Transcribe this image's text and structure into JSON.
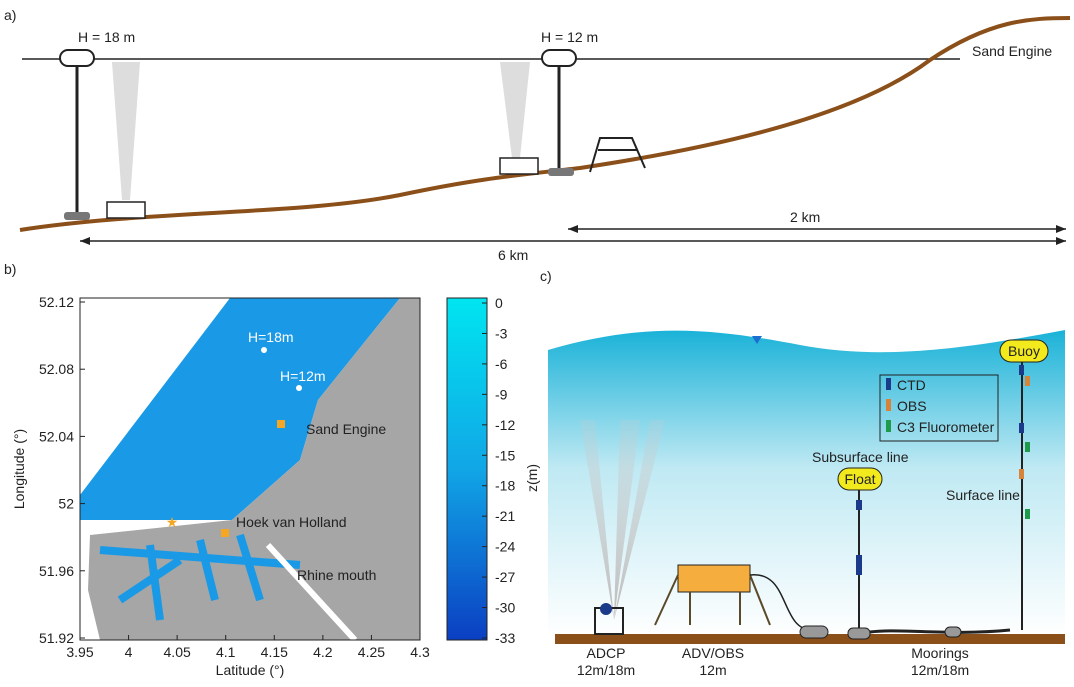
{
  "panel_a": {
    "label": "a)",
    "depth_labels": [
      "H = 18 m",
      "H = 12 m"
    ],
    "site": "Sand Engine",
    "distances": [
      "2 km",
      "6 km"
    ]
  },
  "panel_b": {
    "label": "b)",
    "xlabel": "Latitude (°)",
    "ylabel": "Longitude (°)",
    "xticks": [
      3.95,
      4,
      4.05,
      4.1,
      4.15,
      4.2,
      4.25,
      4.3
    ],
    "yticks": [
      52.12,
      52.08,
      52.04,
      52,
      51.96,
      51.92
    ],
    "colorbar_ticks": [
      0,
      -3,
      -6,
      -9,
      -12,
      -15,
      -18,
      -21,
      -24,
      -27,
      -30,
      -33
    ],
    "annotations": [
      "H=18m",
      "H=12m",
      "Sand Engine",
      "Hoek van Holland",
      "Rhine mouth"
    ]
  },
  "panel_c": {
    "label": "c)",
    "ylabel": "z(m)",
    "buoy": "Buoy",
    "float": "Float",
    "subsurface": "Subsurface line",
    "surface": "Surface line",
    "legend": [
      "CTD",
      "OBS",
      "C3 Fluorometer"
    ],
    "instruments": [
      {
        "name": "ADCP",
        "depth": "12m/18m"
      },
      {
        "name": "ADV/OBS",
        "depth": "12m"
      },
      {
        "name": "Moorings",
        "depth": "12m/18m"
      }
    ]
  }
}
